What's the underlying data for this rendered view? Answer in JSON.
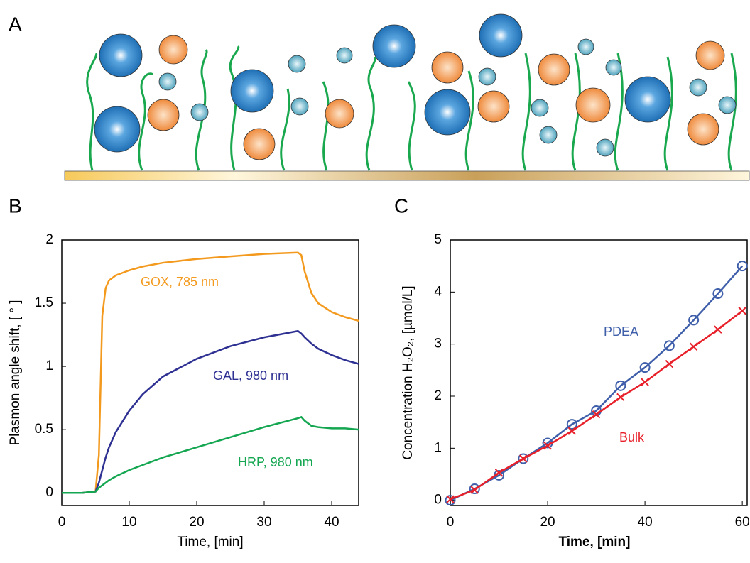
{
  "illustration": {
    "panel": "A"
  },
  "chart_data": [
    {
      "type": "line",
      "panel": "B",
      "x_label": "Time, [min]",
      "y_label": "Plasmon angle shift, [ ° ]",
      "x": [
        0,
        1,
        2,
        3,
        4,
        5,
        5.5,
        6,
        6.5,
        7,
        8,
        10,
        12,
        15,
        20,
        25,
        30,
        35,
        35.5,
        36,
        37,
        38,
        40,
        42,
        44
      ],
      "series": [
        {
          "name": "GOX, 785 nm",
          "color": "#f39a1e",
          "values": [
            0,
            0,
            0,
            0,
            0.005,
            0.01,
            0.3,
            1.4,
            1.62,
            1.68,
            1.72,
            1.76,
            1.79,
            1.82,
            1.85,
            1.87,
            1.89,
            1.9,
            1.88,
            1.75,
            1.58,
            1.5,
            1.43,
            1.39,
            1.36
          ]
        },
        {
          "name": "GAL, 980 nm",
          "color": "#2e3192",
          "values": [
            0,
            0,
            0,
            0,
            0.005,
            0.01,
            0.08,
            0.18,
            0.28,
            0.36,
            0.48,
            0.65,
            0.78,
            0.92,
            1.06,
            1.16,
            1.23,
            1.28,
            1.26,
            1.23,
            1.18,
            1.14,
            1.09,
            1.05,
            1.02
          ]
        },
        {
          "name": "HRP, 980 nm",
          "color": "#14a651",
          "values": [
            0,
            0,
            0,
            0,
            0.005,
            0.01,
            0.04,
            0.06,
            0.08,
            0.1,
            0.13,
            0.18,
            0.22,
            0.28,
            0.36,
            0.44,
            0.52,
            0.59,
            0.6,
            0.57,
            0.53,
            0.52,
            0.51,
            0.51,
            0.5
          ]
        }
      ],
      "xlim": [
        0,
        44
      ],
      "xticks": [
        0,
        10,
        20,
        30,
        40
      ],
      "ylim": [
        -0.1,
        2
      ],
      "yticks": [
        0,
        0.5,
        1,
        1.5,
        2
      ]
    },
    {
      "type": "line",
      "panel": "C",
      "x_label": "Time, [min]",
      "y_label": "Concentration H₂O₂, [µmol/L]",
      "x": [
        0,
        5,
        10,
        15,
        20,
        25,
        30,
        35,
        40,
        45,
        50,
        55,
        60
      ],
      "series": [
        {
          "name": "PDEA",
          "color": "#3f5faa",
          "marker": "o",
          "values": [
            0,
            0.22,
            0.48,
            0.8,
            1.1,
            1.46,
            1.72,
            2.2,
            2.55,
            2.97,
            3.46,
            3.97,
            4.5
          ]
        },
        {
          "name": "Bulk",
          "color": "#e8202a",
          "marker": "x",
          "values": [
            0.02,
            0.2,
            0.53,
            0.8,
            1.05,
            1.33,
            1.65,
            1.98,
            2.27,
            2.62,
            2.95,
            3.28,
            3.64
          ]
        }
      ],
      "xlim": [
        0,
        61
      ],
      "xticks": [
        0,
        20,
        40,
        60
      ],
      "ylim": [
        -0.1,
        5
      ],
      "yticks": [
        0,
        1,
        2,
        3,
        4,
        5
      ]
    }
  ]
}
